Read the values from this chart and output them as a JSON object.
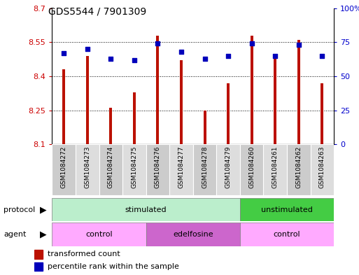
{
  "title": "GDS5544 / 7901309",
  "samples": [
    "GSM1084272",
    "GSM1084273",
    "GSM1084274",
    "GSM1084275",
    "GSM1084276",
    "GSM1084277",
    "GSM1084278",
    "GSM1084279",
    "GSM1084260",
    "GSM1084261",
    "GSM1084262",
    "GSM1084263"
  ],
  "bar_values": [
    8.43,
    8.49,
    8.26,
    8.33,
    8.58,
    8.47,
    8.25,
    8.37,
    8.58,
    8.49,
    8.56,
    8.37
  ],
  "bar_base": 8.1,
  "percentile_values": [
    67,
    70,
    63,
    62,
    74,
    68,
    63,
    65,
    74,
    65,
    73,
    65
  ],
  "ylim_left": [
    8.1,
    8.7
  ],
  "ylim_right": [
    0,
    100
  ],
  "yticks_left": [
    8.1,
    8.25,
    8.4,
    8.55,
    8.7
  ],
  "ytick_labels_left": [
    "8.1",
    "8.25",
    "8.4",
    "8.55",
    "8.7"
  ],
  "yticks_right": [
    0,
    25,
    50,
    75,
    100
  ],
  "ytick_labels_right": [
    "0",
    "25",
    "50",
    "75",
    "100%"
  ],
  "bar_color": "#bb1100",
  "dot_color": "#0000bb",
  "grid_color": "#000000",
  "protocol_groups": [
    {
      "label": "stimulated",
      "start": 0,
      "end": 8,
      "color": "#bbeecc"
    },
    {
      "label": "unstimulated",
      "start": 8,
      "end": 12,
      "color": "#44cc44"
    }
  ],
  "agent_groups": [
    {
      "label": "control",
      "start": 0,
      "end": 4,
      "color": "#ffaaff"
    },
    {
      "label": "edelfosine",
      "start": 4,
      "end": 8,
      "color": "#cc66cc"
    },
    {
      "label": "control",
      "start": 8,
      "end": 12,
      "color": "#ffaaff"
    }
  ],
  "legend_items": [
    {
      "label": "transformed count",
      "color": "#bb1100"
    },
    {
      "label": "percentile rank within the sample",
      "color": "#0000bb"
    }
  ],
  "protocol_label": "protocol",
  "agent_label": "agent",
  "tick_color_left": "#cc0000",
  "tick_color_right": "#0000cc",
  "bar_width": 0.12,
  "dot_size": 20,
  "bg_color_even": "#cccccc",
  "bg_color_odd": "#dddddd"
}
